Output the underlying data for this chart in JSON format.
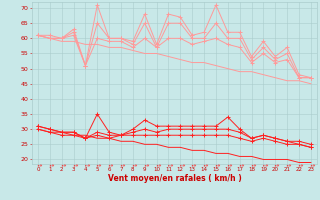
{
  "x": [
    0,
    1,
    2,
    3,
    4,
    5,
    6,
    7,
    8,
    9,
    10,
    11,
    12,
    13,
    14,
    15,
    16,
    17,
    18,
    19,
    20,
    21,
    22,
    23
  ],
  "rafales": [
    61,
    61,
    60,
    63,
    51,
    71,
    60,
    60,
    59,
    68,
    58,
    68,
    67,
    61,
    62,
    71,
    62,
    62,
    54,
    59,
    54,
    57,
    48,
    47
  ],
  "moy1": [
    61,
    60,
    60,
    62,
    51,
    65,
    60,
    60,
    58,
    65,
    57,
    65,
    65,
    60,
    60,
    65,
    60,
    60,
    53,
    57,
    53,
    55,
    47,
    47
  ],
  "moy2": [
    61,
    60,
    60,
    61,
    51,
    60,
    59,
    59,
    57,
    60,
    57,
    60,
    60,
    58,
    59,
    60,
    58,
    57,
    52,
    55,
    52,
    53,
    47,
    47
  ],
  "trend1": [
    61,
    60,
    59,
    59,
    58,
    58,
    57,
    57,
    56,
    55,
    55,
    54,
    53,
    52,
    52,
    51,
    50,
    49,
    49,
    48,
    47,
    46,
    46,
    45
  ],
  "wind1": [
    31,
    30,
    29,
    29,
    27,
    35,
    29,
    28,
    30,
    33,
    31,
    31,
    31,
    31,
    31,
    31,
    34,
    30,
    27,
    28,
    27,
    26,
    26,
    25
  ],
  "wind2": [
    31,
    30,
    29,
    29,
    27,
    29,
    28,
    28,
    29,
    30,
    29,
    30,
    30,
    30,
    30,
    30,
    30,
    29,
    27,
    28,
    27,
    26,
    25,
    24
  ],
  "wind3": [
    30,
    29,
    28,
    28,
    27,
    28,
    27,
    28,
    28,
    28,
    28,
    28,
    28,
    28,
    28,
    28,
    28,
    27,
    26,
    27,
    26,
    25,
    25,
    24
  ],
  "trend2": [
    30,
    29,
    29,
    28,
    28,
    27,
    27,
    26,
    26,
    25,
    25,
    24,
    24,
    23,
    23,
    22,
    22,
    21,
    21,
    20,
    20,
    20,
    19,
    19
  ],
  "bg_color": "#c8e8e8",
  "grid_color": "#aacccc",
  "line_light": "#ff9999",
  "line_dark": "#ff2020",
  "xlabel": "Vent moyen/en rafales ( km/h )",
  "yticks": [
    20,
    25,
    30,
    35,
    40,
    45,
    50,
    55,
    60,
    65,
    70
  ],
  "xticks": [
    0,
    1,
    2,
    3,
    4,
    5,
    6,
    7,
    8,
    9,
    10,
    11,
    12,
    13,
    14,
    15,
    16,
    17,
    18,
    19,
    20,
    21,
    22,
    23
  ]
}
